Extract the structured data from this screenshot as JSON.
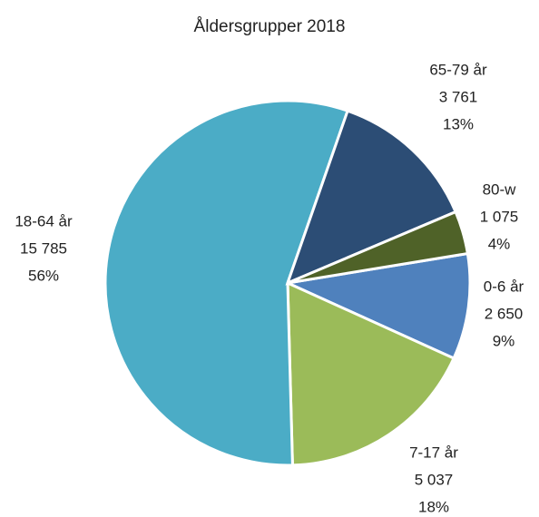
{
  "chart_data": {
    "type": "pie",
    "title": "Åldersgrupper 2018",
    "categories": [
      "0-6 år",
      "7-17 år",
      "18-64 år",
      "65-79 år",
      "80-w"
    ],
    "values": [
      2650,
      5037,
      15785,
      3761,
      1075
    ],
    "value_labels": [
      "2 650",
      "5 037",
      "15 785",
      "3 761",
      "1 075"
    ],
    "percent_labels": [
      "9%",
      "18%",
      "56%",
      "13%",
      "4%"
    ],
    "colors": [
      "#4f81bd",
      "#9bbb59",
      "#4bacc6",
      "#2c4d75",
      "#4f6228"
    ]
  }
}
